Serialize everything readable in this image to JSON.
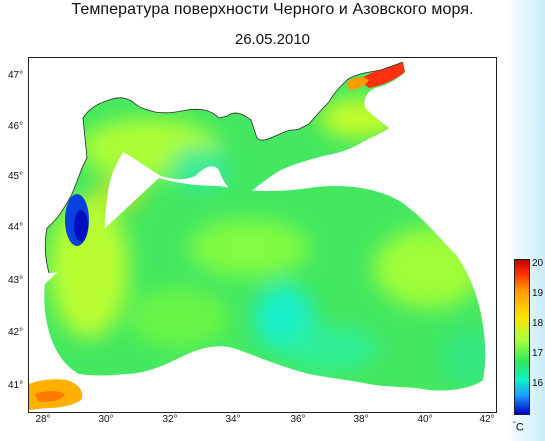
{
  "title": "Температура поверхности Черного и Азовского моря.",
  "date": "26.05.2010",
  "lat_labels": [
    "47°",
    "46°",
    "45°",
    "44°",
    "43°",
    "42°",
    "41°"
  ],
  "lon_labels": [
    "28°",
    "30°",
    "32°",
    "34°",
    "36°",
    "38°",
    "40°",
    "42°"
  ],
  "colorbar": {
    "labels": [
      "20",
      "19",
      "18",
      "17",
      "16"
    ],
    "unit_degree": "°",
    "unit_letter": "C",
    "colors": [
      "#c00000",
      "#ff2a00",
      "#ff9800",
      "#ffe000",
      "#a8ff3c",
      "#2ee85a",
      "#10f0c8",
      "#1a9cff",
      "#0000c8"
    ]
  },
  "colors": {
    "land": "#ffffff",
    "sea_base": "#44e860",
    "frame": "#222222"
  }
}
